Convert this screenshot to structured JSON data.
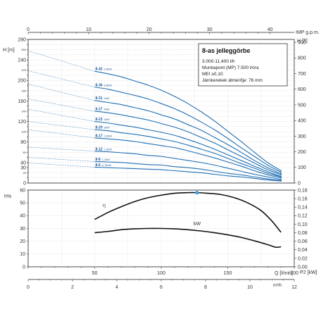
{
  "chart_data": [
    {
      "type": "line",
      "name_key": "head-chart",
      "top_axis": {
        "label": "IMP g.p.m.",
        "ticks": [
          0,
          10,
          20,
          30,
          40
        ]
      },
      "left_axis": {
        "label": "H [m]",
        "ticks": [
          0,
          20,
          40,
          60,
          80,
          100,
          120,
          140,
          160,
          180,
          200,
          220,
          240,
          260,
          280
        ],
        "labeled_ticks": [
          0,
          30,
          40,
          80,
          120,
          160,
          200,
          240,
          280
        ],
        "ylim": [
          0,
          280
        ]
      },
      "right_axis": {
        "label": "H [ft]",
        "ticks": [
          0,
          100,
          200,
          300,
          400,
          500,
          600,
          700,
          800,
          900
        ]
      },
      "info_box": {
        "title": "8-as jelleggörbe",
        "lines": [
          "3.000-11.400 l/h",
          "Munkapont (MP) 7.500 l/óra",
          "MEI ≥0,10",
          "Járókerekek átmérője: 76 mm"
        ]
      },
      "x_q": [
        50,
        60,
        70,
        80,
        90,
        100,
        110,
        120,
        130,
        140,
        150,
        160,
        170,
        180,
        190
      ],
      "series": [
        {
          "name": "8-42",
          "power": "5,5kW",
          "values": [
            218,
            213,
            207,
            199,
            191,
            181,
            169,
            155,
            139,
            121,
            101,
            81,
            60,
            40,
            24
          ]
        },
        {
          "name": "8-36",
          "power": "5,5kW",
          "values": [
            187,
            183,
            177,
            171,
            164,
            155,
            145,
            133,
            119,
            104,
            87,
            69,
            52,
            35,
            21
          ]
        },
        {
          "name": "8-31",
          "power": "4kW",
          "values": [
            161,
            157,
            153,
            147,
            141,
            133,
            125,
            114,
            103,
            89,
            75,
            60,
            44,
            30,
            18
          ]
        },
        {
          "name": "8-27",
          "power": "4kW",
          "values": [
            140,
            137,
            133,
            128,
            123,
            116,
            109,
            100,
            89,
            78,
            65,
            52,
            39,
            26,
            16
          ]
        },
        {
          "name": "8-23",
          "power": "3kW",
          "values": [
            120,
            117,
            113,
            109,
            104,
            99,
            93,
            85,
            76,
            66,
            55,
            44,
            33,
            22,
            13
          ]
        },
        {
          "name": "8-20",
          "power": "3kW",
          "values": [
            104,
            102,
            98,
            95,
            91,
            86,
            81,
            74,
            66,
            58,
            48,
            38,
            29,
            19,
            12
          ]
        },
        {
          "name": "8-17",
          "power": "2,2kW",
          "values": [
            88,
            86,
            84,
            81,
            77,
            73,
            69,
            63,
            56,
            49,
            41,
            33,
            24,
            16,
            10
          ]
        },
        {
          "name": "8-12",
          "power": "1,5kW",
          "values": [
            62,
            61,
            59,
            57,
            54,
            52,
            48,
            44,
            40,
            35,
            29,
            23,
            17,
            12,
            7
          ]
        },
        {
          "name": "8-8",
          "power": "1,1kW",
          "values": [
            42,
            41,
            40,
            38,
            36,
            35,
            32,
            30,
            27,
            23,
            19,
            16,
            12,
            8,
            5
          ]
        },
        {
          "name": "8-6",
          "power": "0,75kW",
          "values": [
            31,
            30,
            29,
            28,
            27,
            26,
            24,
            22,
            20,
            17,
            14,
            12,
            9,
            6,
            4
          ]
        }
      ]
    },
    {
      "type": "line",
      "name_key": "efficiency-power-chart",
      "left_axis": {
        "label": "h%",
        "ticks": [
          0,
          10,
          20,
          30,
          40,
          50,
          60
        ],
        "ylim": [
          0,
          60
        ]
      },
      "right_axis": {
        "label": "P2 [kW]",
        "ticks": [
          "0,00",
          "0,02",
          "0,04",
          "0,06",
          "0,08",
          "0,10",
          "0,12",
          "0,14",
          "0,16",
          "0,18"
        ],
        "ylim": [
          0,
          0.18
        ]
      },
      "x_q_axis": {
        "label": "Q [l/min]",
        "ticks": [
          50,
          100,
          150,
          200
        ],
        "xlim": [
          0,
          200
        ]
      },
      "x_m3h_axis": {
        "label": "m³/h",
        "ticks": [
          0,
          2,
          4,
          6,
          8,
          10,
          12
        ],
        "xlim": [
          0,
          12
        ]
      },
      "efficiency": {
        "name": "η",
        "x": [
          50,
          60,
          70,
          80,
          90,
          100,
          110,
          120,
          127,
          135,
          145,
          155,
          165,
          175,
          183,
          190
        ],
        "values": [
          37,
          42.5,
          47,
          51,
          54,
          56,
          57.5,
          58,
          58,
          57.5,
          56.5,
          54,
          50,
          44,
          36,
          27
        ]
      },
      "power": {
        "name": "kW",
        "x": [
          50,
          60,
          70,
          80,
          90,
          100,
          110,
          120,
          130,
          140,
          150,
          160,
          170,
          180,
          186,
          190
        ],
        "values": [
          0.08,
          0.083,
          0.087,
          0.089,
          0.09,
          0.09,
          0.089,
          0.087,
          0.084,
          0.08,
          0.075,
          0.069,
          0.061,
          0.052,
          0.046,
          0.047
        ]
      },
      "operating_point": {
        "x": 127,
        "value": 58
      },
      "colors": {
        "efficiency": "#111111",
        "power": "#111111",
        "operating_point": "#3aa0e0"
      }
    }
  ],
  "colors": {
    "curve": "#1f6fb3",
    "grid": "#bbbbbb",
    "extension": "#1f6fb3"
  }
}
